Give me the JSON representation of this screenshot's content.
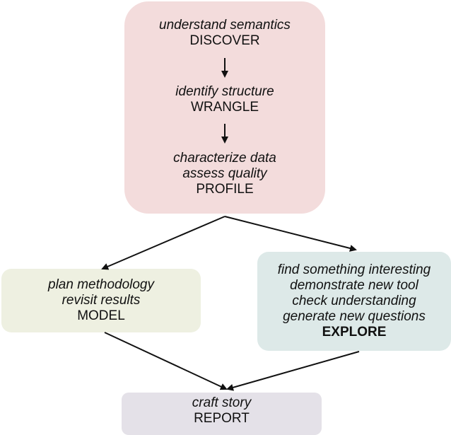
{
  "discover": {
    "line1": "understand semantics",
    "stage1": "DISCOVER",
    "line2": "identify structure",
    "stage2": "WRANGLE",
    "line3a": "characterize data",
    "line3b": "assess quality",
    "stage3": "PROFILE",
    "color": "#f3dcdc"
  },
  "model": {
    "line1": "plan methodology",
    "line2": "revisit results",
    "stage": "MODEL",
    "color": "#eef0e1"
  },
  "explore": {
    "line1": "find something interesting",
    "line2": "demonstrate new tool",
    "line3": "check understanding",
    "line4": "generate new questions",
    "stage": "EXPLORE",
    "color": "#dde9e8"
  },
  "report": {
    "line1": "craft story",
    "stage": "REPORT",
    "color": "#e4e1e8"
  }
}
